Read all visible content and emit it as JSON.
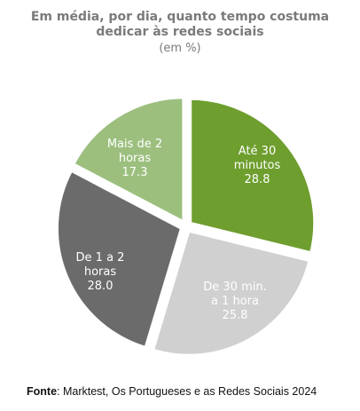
{
  "chart_data": {
    "type": "pie",
    "title_lines": [
      "Em média, por dia, quanto tempo costuma",
      "dedicar às redes sociais"
    ],
    "subtitle": "(em %)",
    "slices": [
      {
        "label_lines": [
          "Até 30",
          "minutos"
        ],
        "value": 28.8,
        "value_text": "28.8",
        "color": "#6e9e2e",
        "text_color": "#ffffff"
      },
      {
        "label_lines": [
          "De 30 min.",
          "a 1 hora"
        ],
        "value": 25.8,
        "value_text": "25.8",
        "color": "#d0d0d0",
        "text_color": "#ffffff"
      },
      {
        "label_lines": [
          "De 1 a 2",
          "horas"
        ],
        "value": 28.0,
        "value_text": "28.0",
        "color": "#6b6b6b",
        "text_color": "#ffffff"
      },
      {
        "label_lines": [
          "Mais de 2",
          "horas"
        ],
        "value": 17.3,
        "value_text": "17.3",
        "color": "#9cbf7e",
        "text_color": "#ffffff"
      }
    ]
  },
  "source": {
    "label": "Fonte",
    "text": ": Marktest, Os Portugueses e as Redes Sociais 2024"
  }
}
